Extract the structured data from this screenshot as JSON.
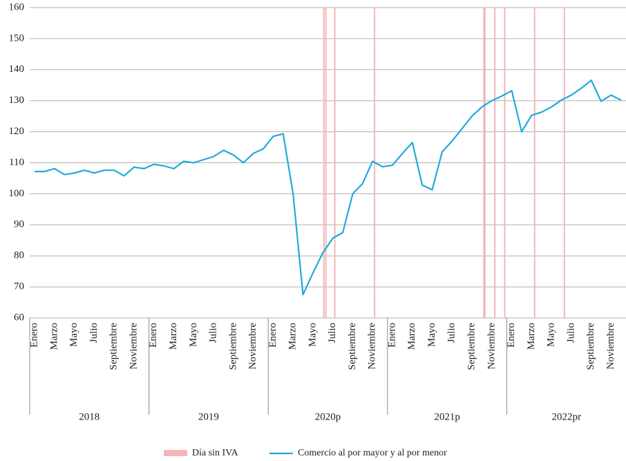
{
  "chart_data": {
    "type": "line",
    "categories": [
      "Enero",
      null,
      "Marzo",
      null,
      "Mayo",
      null,
      "Julio",
      null,
      "Septiembre",
      null,
      "Noviembre",
      null,
      "Enero",
      null,
      "Marzo",
      null,
      "Mayo",
      null,
      "Julio",
      null,
      "Septiembre",
      null,
      "Noviembre",
      null,
      "Enero",
      null,
      "Marzo",
      null,
      "Mayo",
      null,
      "Julio",
      null,
      "Septiembre",
      null,
      "Noviembre",
      null,
      "Enero",
      null,
      "Marzo",
      null,
      "Mayo",
      null,
      "Julio",
      null,
      "Septiembre",
      null,
      "Noviembre",
      null,
      "Enero",
      null,
      "Marzo",
      null,
      "Mayo",
      null,
      "Julio",
      null,
      "Septiembre",
      null,
      "Noviembre",
      null
    ],
    "groups": [
      "2018",
      "2019",
      "2020p",
      "2021p",
      "2022pr"
    ],
    "series": [
      {
        "name": "Comercio al por mayor y al por menor",
        "color": "#1fa9de",
        "values": [
          107.2,
          107.2,
          108.1,
          106.2,
          106.7,
          107.6,
          106.7,
          107.6,
          107.6,
          105.8,
          108.6,
          108.1,
          109.5,
          109.0,
          108.1,
          110.5,
          110.0,
          111.0,
          112.0,
          114.0,
          112.5,
          110.0,
          113.0,
          114.5,
          118.5,
          119.3,
          100.0,
          67.5,
          74.5,
          81.0,
          85.7,
          87.5,
          100.0,
          103.3,
          110.5,
          108.7,
          109.2,
          113.0,
          116.5,
          102.8,
          101.3,
          113.5,
          117.0,
          121.0,
          125.0,
          128.0,
          130.0,
          131.5,
          133.2,
          120.0,
          125.3,
          126.3,
          128.0,
          130.2,
          131.8,
          134.0,
          136.6,
          129.8,
          131.8,
          130.2
        ]
      }
    ],
    "events": {
      "name": "Día sin IVA",
      "color": "#f4b6b6",
      "x": [
        29.1,
        29.3,
        30.2,
        34.2,
        45.2,
        45.3,
        46.3,
        47.3,
        50.3,
        53.3
      ]
    },
    "ylim": [
      60,
      160
    ],
    "yticks": [
      60,
      70,
      80,
      90,
      100,
      110,
      120,
      130,
      140,
      150,
      160
    ],
    "grid": true
  }
}
